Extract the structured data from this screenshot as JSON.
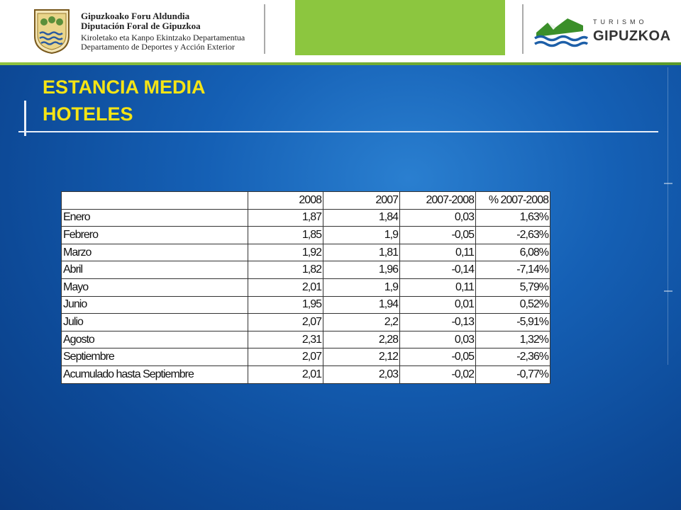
{
  "header": {
    "org_lines": [
      "Gipuzkoako Foru Aldundia",
      "Diputación Foral de Gipuzkoa",
      "Kiroletako eta Kanpo Ekintzako Departamentua",
      "Departamento de Deportes y Acción Exterior"
    ],
    "brand_small": "TURISMO",
    "brand_big": "GIPUZKOA",
    "colors": {
      "green": "#8cc63f",
      "title_yellow": "#f5e415",
      "background_blue": "#1560b5"
    }
  },
  "slide": {
    "title_line1": "ESTANCIA MEDIA",
    "title_line2": "HOTELES"
  },
  "table": {
    "columns": [
      "",
      "2008",
      "2007",
      "2007-2008",
      "% 2007-2008"
    ],
    "rows": [
      [
        "Enero",
        "1,87",
        "1,84",
        "0,03",
        "1,63%"
      ],
      [
        "Febrero",
        "1,85",
        "1,9",
        "-0,05",
        "-2,63%"
      ],
      [
        "Marzo",
        "1,92",
        "1,81",
        "0,11",
        "6,08%"
      ],
      [
        "Abril",
        "1,82",
        "1,96",
        "-0,14",
        "-7,14%"
      ],
      [
        "Mayo",
        "2,01",
        "1,9",
        "0,11",
        "5,79%"
      ],
      [
        "Junio",
        "1,95",
        "1,94",
        "0,01",
        "0,52%"
      ],
      [
        "Julio",
        "2,07",
        "2,2",
        "-0,13",
        "-5,91%"
      ],
      [
        "Agosto",
        "2,31",
        "2,28",
        "0,03",
        "1,32%"
      ],
      [
        "Septiembre",
        "2,07",
        "2,12",
        "-0,05",
        "-2,36%"
      ],
      [
        "Acumulado hasta Septiembre",
        "2,01",
        "2,03",
        "-0,02",
        "-0,77%"
      ]
    ]
  }
}
